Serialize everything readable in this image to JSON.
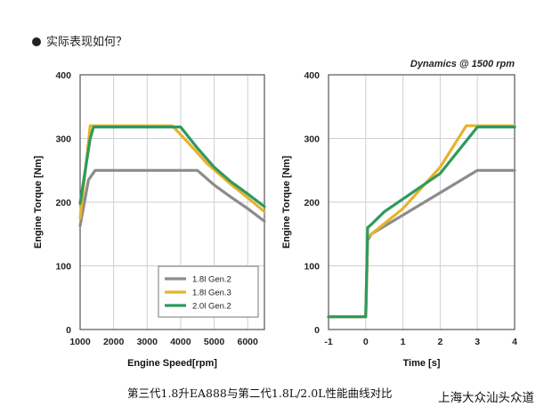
{
  "heading": "实际表现如何？",
  "caption": "第三代1.8升EA888与第二代1.8L/2.0L性能曲线对比",
  "watermark": "上海大众汕头众道",
  "colors": {
    "gen2_18": "#8c8c8c",
    "gen3_18": "#e8b22c",
    "gen2_20": "#2e9a5e",
    "grid": "#cfcfcf",
    "frame": "#555555"
  },
  "chart_data": [
    {
      "type": "line",
      "title": "",
      "xlabel": "Engine Speed[rpm]",
      "ylabel": "Engine Torque [Nm]",
      "xlim": [
        1000,
        6500
      ],
      "ylim": [
        0,
        400
      ],
      "xticks": [
        "1000",
        "2000",
        "3000",
        "4000",
        "5000",
        "6000"
      ],
      "xtick_values": [
        1000,
        2000,
        3000,
        4000,
        5000,
        6000
      ],
      "yticks": [
        "0",
        "100",
        "200",
        "300",
        "400"
      ],
      "ytick_values": [
        0,
        100,
        200,
        300,
        400
      ],
      "legend": {
        "position": "bottom-right",
        "entries": [
          "1.8l Gen.2",
          "1.8l Gen.3",
          "2.0l Gen.2"
        ]
      },
      "series": [
        {
          "name": "1.8l Gen.2",
          "color_key": "gen2_18",
          "x": [
            1000,
            1250,
            1450,
            4500,
            5000,
            5500,
            6000,
            6500
          ],
          "y": [
            163,
            235,
            250,
            250,
            227,
            208,
            190,
            170
          ]
        },
        {
          "name": "1.8l Gen.3",
          "color_key": "gen3_18",
          "x": [
            1000,
            1250,
            1300,
            3750,
            4200,
            4800,
            5500,
            6000,
            6500
          ],
          "y": [
            175,
            295,
            320,
            320,
            295,
            260,
            228,
            207,
            185
          ]
        },
        {
          "name": "2.0l Gen.2",
          "color_key": "gen2_20",
          "x": [
            1000,
            1300,
            1400,
            4000,
            4500,
            5000,
            5500,
            6000,
            6500
          ],
          "y": [
            198,
            300,
            318,
            318,
            285,
            255,
            232,
            213,
            193
          ]
        }
      ]
    },
    {
      "type": "line",
      "title": "Dynamics @ 1500 rpm",
      "xlabel": "Time [s]",
      "ylabel": "Engine Torque [Nm]",
      "xlim": [
        -1,
        4
      ],
      "ylim": [
        0,
        400
      ],
      "xticks": [
        "-1",
        "0",
        "1",
        "2",
        "3",
        "4"
      ],
      "xtick_values": [
        -1,
        0,
        1,
        2,
        3,
        4
      ],
      "yticks": [
        "0",
        "100",
        "200",
        "300",
        "400"
      ],
      "ytick_values": [
        0,
        100,
        200,
        300,
        400
      ],
      "series": [
        {
          "name": "1.8l Gen.2",
          "color_key": "gen2_18",
          "x": [
            -1,
            0,
            0.05,
            0.15,
            3.0,
            4
          ],
          "y": [
            20,
            20,
            140,
            150,
            250,
            250
          ]
        },
        {
          "name": "1.8l Gen.3",
          "color_key": "gen3_18",
          "x": [
            -1,
            0,
            0.05,
            0.15,
            1.0,
            2.0,
            2.7,
            4
          ],
          "y": [
            20,
            20,
            145,
            150,
            190,
            255,
            320,
            320
          ]
        },
        {
          "name": "2.0l Gen.2",
          "color_key": "gen2_20",
          "x": [
            -1,
            0,
            0.05,
            0.15,
            0.5,
            1.0,
            2.0,
            3.0,
            4
          ],
          "y": [
            20,
            20,
            160,
            165,
            185,
            205,
            245,
            318,
            318
          ]
        }
      ]
    }
  ]
}
